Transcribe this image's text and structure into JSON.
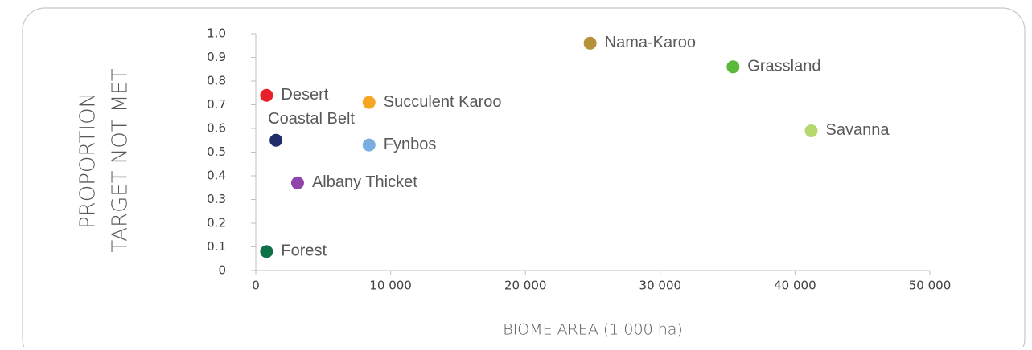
{
  "chart_data": {
    "type": "scatter",
    "ylabel": [
      "PROPORTION",
      "TARGET NOT MET"
    ],
    "xlabel": "BIOME AREA (1 000 ha)",
    "labels": [
      "Desert",
      "Succulent Karoo",
      "Coastal Belt",
      "Fynbos",
      "Albany Thicket",
      "Forest",
      "Nama-Karoo",
      "Grassland",
      "Savanna"
    ],
    "x": [
      800,
      8400,
      1500,
      8400,
      3100,
      800,
      24800,
      35400,
      41200
    ],
    "values": [
      0.74,
      0.71,
      0.55,
      0.53,
      0.37,
      0.08,
      0.96,
      0.86,
      0.59
    ],
    "colors": [
      "#e8202a",
      "#f5a623",
      "#1f2d6b",
      "#7aaee0",
      "#8e44a8",
      "#10704a",
      "#b5913a",
      "#5ab83a",
      "#b5d96e"
    ],
    "xlim": [
      0,
      50000
    ],
    "xticks": [
      0,
      {
        "value": 10000,
        "label": "10 000"
      },
      {
        "value": 20000,
        "label": "20 000"
      },
      {
        "value": 30000,
        "label": "30 000"
      },
      {
        "value": 40000,
        "label": "40 000"
      },
      {
        "value": 50000,
        "label": "50 000"
      }
    ],
    "ylim": [
      0,
      1
    ],
    "yticks": [
      0,
      0.1,
      0.2,
      0.3,
      0.4,
      0.5,
      0.6,
      0.7,
      0.8,
      0.9,
      {
        "value": 1,
        "label": "1.0"
      }
    ]
  }
}
